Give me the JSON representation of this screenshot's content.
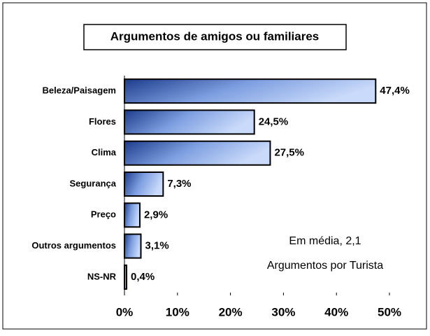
{
  "chart_data": {
    "type": "bar",
    "orientation": "horizontal",
    "title": "Argumentos de amigos ou familiares",
    "categories": [
      "Beleza/Paisagem",
      "Flores",
      "Clima",
      "Segurança",
      "Preço",
      "Outros argumentos",
      "NS-NR"
    ],
    "values": [
      47.4,
      24.5,
      27.5,
      7.3,
      2.9,
      3.1,
      0.4
    ],
    "value_labels": [
      "47,4%",
      "24,5%",
      "27,5%",
      "7,3%",
      "2,9%",
      "3,1%",
      "0,4%"
    ],
    "color": "#1c3c8c",
    "xlim": [
      0,
      50
    ],
    "xticks": [
      {
        "value": 0,
        "label": "0%"
      },
      {
        "value": 10,
        "label": "10%"
      },
      {
        "value": 20,
        "label": "20%"
      },
      {
        "value": 30,
        "label": "30%"
      },
      {
        "value": 40,
        "label": "40%"
      },
      {
        "value": 50,
        "label": "50%"
      }
    ],
    "annotations": [
      "Em média, 2,1",
      "Argumentos por Turista"
    ]
  }
}
